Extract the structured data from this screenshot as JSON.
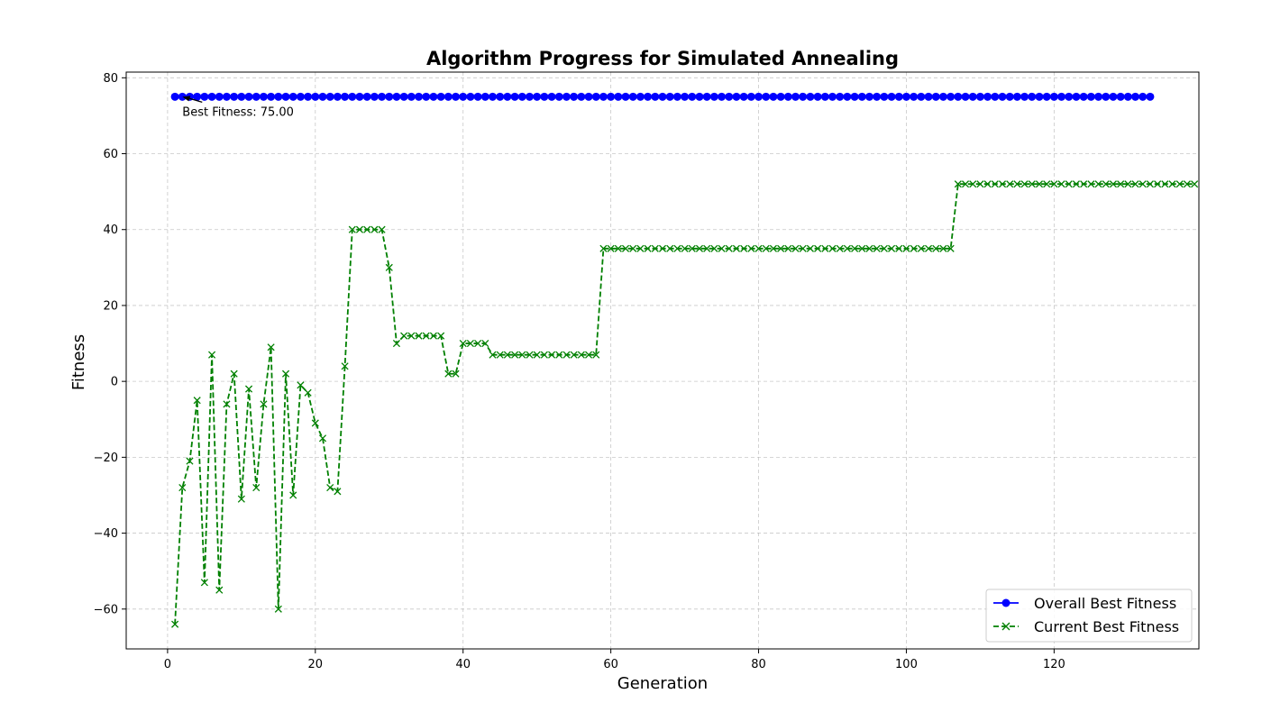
{
  "chart_data": {
    "type": "line",
    "title": "Algorithm Progress for Simulated Annealing",
    "xlabel": "Generation",
    "ylabel": "Fitness",
    "xlim": [
      -5.6,
      139.6
    ],
    "ylim": [
      -70.5,
      81.5
    ],
    "xticks": [
      0,
      20,
      40,
      60,
      80,
      100,
      120
    ],
    "yticks": [
      -60,
      -40,
      -20,
      0,
      20,
      40,
      60,
      80
    ],
    "grid": true,
    "legend_position": "lower right",
    "annotation": {
      "text": "Best Fitness: 75.00",
      "x": 2,
      "y": 75
    },
    "series": [
      {
        "name": "Overall Best Fitness",
        "color": "#0000ff",
        "marker": "circle",
        "linestyle": "solid",
        "x_start": 1,
        "values": [
          75,
          75,
          75,
          75,
          75,
          75,
          75,
          75,
          75,
          75,
          75,
          75,
          75,
          75,
          75,
          75,
          75,
          75,
          75,
          75,
          75,
          75,
          75,
          75,
          75,
          75,
          75,
          75,
          75,
          75,
          75,
          75,
          75,
          75,
          75,
          75,
          75,
          75,
          75,
          75,
          75,
          75,
          75,
          75,
          75,
          75,
          75,
          75,
          75,
          75,
          75,
          75,
          75,
          75,
          75,
          75,
          75,
          75,
          75,
          75,
          75,
          75,
          75,
          75,
          75,
          75,
          75,
          75,
          75,
          75,
          75,
          75,
          75,
          75,
          75,
          75,
          75,
          75,
          75,
          75,
          75,
          75,
          75,
          75,
          75,
          75,
          75,
          75,
          75,
          75,
          75,
          75,
          75,
          75,
          75,
          75,
          75,
          75,
          75,
          75,
          75,
          75,
          75,
          75,
          75,
          75,
          75,
          75,
          75,
          75,
          75,
          75,
          75,
          75,
          75,
          75,
          75,
          75,
          75,
          75,
          75,
          75,
          75,
          75,
          75,
          75,
          75,
          75,
          75,
          75,
          75,
          75,
          75
        ]
      },
      {
        "name": "Current Best Fitness",
        "color": "#008000",
        "marker": "x",
        "linestyle": "dashed",
        "x_start": 1,
        "values": [
          -64,
          -28,
          -21,
          -5,
          -53,
          7,
          -55,
          -6,
          2,
          -31,
          -2,
          -28,
          -6,
          9,
          -60,
          2,
          -30,
          -1,
          -3,
          -11,
          -15,
          -28,
          -29,
          4,
          40,
          40,
          40,
          40,
          40,
          30,
          10,
          12,
          12,
          12,
          12,
          12,
          12,
          2,
          2,
          10,
          10,
          10,
          10,
          7,
          7,
          7,
          7,
          7,
          7,
          7,
          7,
          7,
          7,
          7,
          7,
          7,
          7,
          7,
          35,
          35,
          35,
          35,
          35,
          35,
          35,
          35,
          35,
          35,
          35,
          35,
          35,
          35,
          35,
          35,
          35,
          35,
          35,
          35,
          35,
          35,
          35,
          35,
          35,
          35,
          35,
          35,
          35,
          35,
          35,
          35,
          35,
          35,
          35,
          35,
          35,
          35,
          35,
          35,
          35,
          35,
          35,
          35,
          35,
          35,
          35,
          35,
          52,
          52,
          52,
          52,
          52,
          52,
          52,
          52,
          52,
          52,
          52,
          52,
          52,
          52,
          52,
          52,
          52,
          52,
          52,
          52,
          52,
          52,
          52,
          52,
          52,
          52,
          52,
          52,
          52,
          52,
          52,
          52,
          52
        ]
      }
    ]
  }
}
